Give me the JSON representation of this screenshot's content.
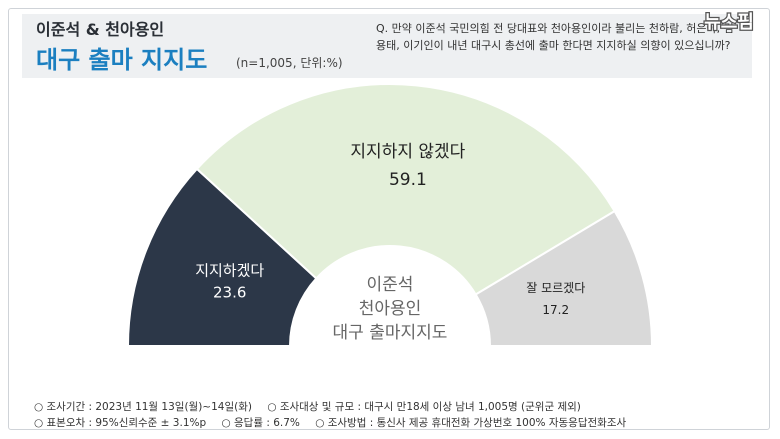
{
  "header": {
    "title_top": "이준석 & 천아용인",
    "title_main": "대구 출마 지지도",
    "note": "(n=1,005, 단위:%)",
    "question": "Q. 만약 이준석 국민의힘 전 당대표와 천아용인이라 불리는 천하람, 허은아, 김용태, 이기인이 내년 대구시 총선에 출마 한다면 지지하실 의향이 있으십니까?",
    "logo_text": "뉴스핌"
  },
  "chart_data": {
    "type": "pie",
    "variant": "semicircle-donut",
    "center_label": [
      "이준석",
      "천아용인",
      "대구 출마지지도"
    ],
    "slices": [
      {
        "label": "지지하겠다",
        "value": 23.6,
        "value_text": "23.6",
        "color": "#2c3748",
        "text_color": "#ffffff"
      },
      {
        "label": "지지하지 않겠다",
        "value": 59.1,
        "value_text": "59.1",
        "color": "#e3efd9",
        "text_color": "#222222"
      },
      {
        "label": "잘 모르겠다",
        "value": 17.2,
        "value_text": "17.2",
        "color": "#d9d9d9",
        "text_color": "#222222"
      }
    ]
  },
  "footer": {
    "row1": [
      "○ 조사기간 : 2023년 11월 13일(월)~14일(화)",
      "○ 조사대상 및 규모 : 대구시 만18세 이상 남녀  1,005명 (군위군 제외)"
    ],
    "row2": [
      "○ 표본오차 : 95%신뢰수준 ± 3.1%p",
      "○ 응답률 : 6.7%",
      "○ 조사방법 : 통신사 제공 휴대전화 가상번호 100% 자동응답전화조사"
    ]
  }
}
